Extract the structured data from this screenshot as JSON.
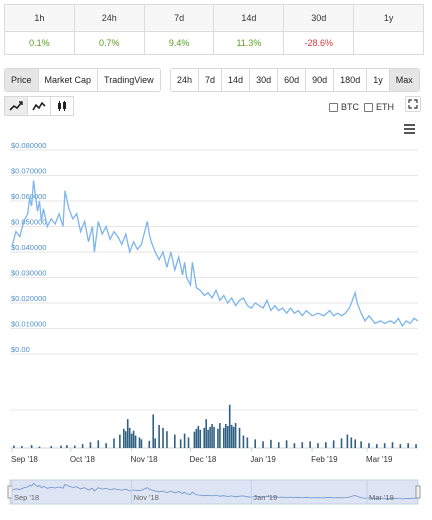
{
  "performance": {
    "headers": [
      "1h",
      "24h",
      "7d",
      "14d",
      "30d",
      "1y"
    ],
    "values": [
      "0.1%",
      "0.7%",
      "9.4%",
      "11.3%",
      "-28.6%",
      ""
    ],
    "signs": [
      "pos",
      "pos",
      "pos",
      "pos",
      "neg",
      ""
    ]
  },
  "chart_type_tabs": [
    {
      "label": "Price",
      "active": true
    },
    {
      "label": "Market Cap",
      "active": false
    },
    {
      "label": "TradingView",
      "active": false
    }
  ],
  "range_tabs": [
    {
      "label": "24h",
      "active": false
    },
    {
      "label": "7d",
      "active": false
    },
    {
      "label": "14d",
      "active": false
    },
    {
      "label": "30d",
      "active": false
    },
    {
      "label": "60d",
      "active": false
    },
    {
      "label": "90d",
      "active": false
    },
    {
      "label": "180d",
      "active": false
    },
    {
      "label": "1y",
      "active": false
    },
    {
      "label": "Max",
      "active": true
    }
  ],
  "toggles": {
    "btc": "BTC",
    "eth": "ETH"
  },
  "chart_data": {
    "type": "line",
    "series_color": "#7cb5ec",
    "volume_color": "#2f5f82",
    "y_ticks": [
      "$0.080000",
      "$0.070000",
      "$0.060000",
      "$0.050000",
      "$0.040000",
      "$0.030000",
      "$0.020000",
      "$0.010000",
      "$0.00"
    ],
    "ylim": [
      0,
      0.08
    ],
    "x_ticks": [
      {
        "label": "Sep '18",
        "day": 0
      },
      {
        "label": "Oct '18",
        "day": 30
      },
      {
        "label": "Nov '18",
        "day": 61
      },
      {
        "label": "Dec '18",
        "day": 91
      },
      {
        "label": "Jan '19",
        "day": 122
      },
      {
        "label": "Feb '19",
        "day": 153
      },
      {
        "label": "Mar '19",
        "day": 181
      }
    ],
    "price_points": [
      [
        0,
        0.042
      ],
      [
        2,
        0.048
      ],
      [
        4,
        0.046
      ],
      [
        6,
        0.052
      ],
      [
        8,
        0.055
      ],
      [
        9,
        0.061
      ],
      [
        10,
        0.058
      ],
      [
        11,
        0.068
      ],
      [
        12,
        0.062
      ],
      [
        13,
        0.056
      ],
      [
        14,
        0.06
      ],
      [
        15,
        0.052
      ],
      [
        16,
        0.057
      ],
      [
        18,
        0.05
      ],
      [
        20,
        0.053
      ],
      [
        22,
        0.051
      ],
      [
        24,
        0.055
      ],
      [
        26,
        0.05
      ],
      [
        27,
        0.064
      ],
      [
        29,
        0.057
      ],
      [
        31,
        0.053
      ],
      [
        33,
        0.055
      ],
      [
        35,
        0.048
      ],
      [
        37,
        0.052
      ],
      [
        39,
        0.044
      ],
      [
        41,
        0.05
      ],
      [
        42,
        0.04
      ],
      [
        44,
        0.052
      ],
      [
        46,
        0.047
      ],
      [
        48,
        0.05
      ],
      [
        50,
        0.045
      ],
      [
        52,
        0.048
      ],
      [
        54,
        0.046
      ],
      [
        56,
        0.043
      ],
      [
        58,
        0.047
      ],
      [
        60,
        0.04
      ],
      [
        62,
        0.044
      ],
      [
        64,
        0.041
      ],
      [
        66,
        0.043
      ],
      [
        69,
        0.052
      ],
      [
        70,
        0.047
      ],
      [
        71,
        0.044
      ],
      [
        73,
        0.04
      ],
      [
        75,
        0.037
      ],
      [
        77,
        0.04
      ],
      [
        79,
        0.034
      ],
      [
        81,
        0.04
      ],
      [
        83,
        0.033
      ],
      [
        85,
        0.038
      ],
      [
        87,
        0.031
      ],
      [
        88,
        0.036
      ],
      [
        89,
        0.03
      ],
      [
        91,
        0.027
      ],
      [
        92,
        0.036
      ],
      [
        94,
        0.026
      ],
      [
        96,
        0.025
      ],
      [
        98,
        0.023
      ],
      [
        100,
        0.024
      ],
      [
        102,
        0.022
      ],
      [
        104,
        0.025
      ],
      [
        106,
        0.021
      ],
      [
        108,
        0.023
      ],
      [
        110,
        0.02
      ],
      [
        112,
        0.022
      ],
      [
        114,
        0.019
      ],
      [
        116,
        0.021
      ],
      [
        118,
        0.022
      ],
      [
        120,
        0.019
      ],
      [
        122,
        0.018
      ],
      [
        124,
        0.02
      ],
      [
        126,
        0.019
      ],
      [
        128,
        0.018
      ],
      [
        130,
        0.021
      ],
      [
        132,
        0.017
      ],
      [
        134,
        0.019
      ],
      [
        136,
        0.017
      ],
      [
        138,
        0.018
      ],
      [
        140,
        0.016
      ],
      [
        142,
        0.018
      ],
      [
        144,
        0.016
      ],
      [
        146,
        0.017
      ],
      [
        148,
        0.015
      ],
      [
        150,
        0.017
      ],
      [
        153,
        0.015
      ],
      [
        156,
        0.016
      ],
      [
        159,
        0.015
      ],
      [
        162,
        0.017
      ],
      [
        164,
        0.015
      ],
      [
        166,
        0.016
      ],
      [
        168,
        0.015
      ],
      [
        170,
        0.016
      ],
      [
        172,
        0.018
      ],
      [
        174,
        0.022
      ],
      [
        175,
        0.024
      ],
      [
        176,
        0.02
      ],
      [
        178,
        0.016
      ],
      [
        180,
        0.013
      ],
      [
        182,
        0.015
      ],
      [
        185,
        0.012
      ],
      [
        188,
        0.013
      ],
      [
        190,
        0.012
      ],
      [
        193,
        0.013
      ],
      [
        195,
        0.012
      ],
      [
        197,
        0.014
      ],
      [
        199,
        0.011
      ],
      [
        201,
        0.013
      ],
      [
        203,
        0.012
      ],
      [
        205,
        0.014
      ],
      [
        207,
        0.013
      ]
    ],
    "volume_points": [
      [
        1,
        0.05
      ],
      [
        5,
        0.04
      ],
      [
        10,
        0.06
      ],
      [
        14,
        0.03
      ],
      [
        20,
        0.04
      ],
      [
        25,
        0.05
      ],
      [
        28,
        0.06
      ],
      [
        32,
        0.05
      ],
      [
        36,
        0.08
      ],
      [
        40,
        0.12
      ],
      [
        44,
        0.16
      ],
      [
        48,
        0.1
      ],
      [
        52,
        0.2
      ],
      [
        55,
        0.28
      ],
      [
        57,
        0.4
      ],
      [
        58,
        0.35
      ],
      [
        59,
        0.6
      ],
      [
        60,
        0.42
      ],
      [
        61,
        0.3
      ],
      [
        62,
        0.36
      ],
      [
        63,
        0.26
      ],
      [
        65,
        0.22
      ],
      [
        66,
        0.18
      ],
      [
        70,
        0.15
      ],
      [
        72,
        0.7
      ],
      [
        73,
        0.2
      ],
      [
        75,
        0.48
      ],
      [
        77,
        0.42
      ],
      [
        79,
        0.35
      ],
      [
        83,
        0.28
      ],
      [
        86,
        0.18
      ],
      [
        88,
        0.3
      ],
      [
        90,
        0.22
      ],
      [
        93,
        0.34
      ],
      [
        94,
        0.4
      ],
      [
        95,
        0.46
      ],
      [
        96,
        0.38
      ],
      [
        98,
        0.42
      ],
      [
        99,
        0.6
      ],
      [
        100,
        0.38
      ],
      [
        101,
        0.44
      ],
      [
        102,
        0.5
      ],
      [
        103,
        0.44
      ],
      [
        105,
        0.4
      ],
      [
        106,
        0.52
      ],
      [
        108,
        0.42
      ],
      [
        109,
        0.5
      ],
      [
        110,
        0.46
      ],
      [
        111,
        0.9
      ],
      [
        112,
        0.48
      ],
      [
        113,
        0.44
      ],
      [
        114,
        0.52
      ],
      [
        116,
        0.42
      ],
      [
        118,
        0.26
      ],
      [
        120,
        0.22
      ],
      [
        124,
        0.18
      ],
      [
        128,
        0.14
      ],
      [
        132,
        0.17
      ],
      [
        136,
        0.12
      ],
      [
        140,
        0.16
      ],
      [
        144,
        0.1
      ],
      [
        148,
        0.12
      ],
      [
        152,
        0.14
      ],
      [
        156,
        0.1
      ],
      [
        160,
        0.12
      ],
      [
        164,
        0.16
      ],
      [
        168,
        0.2
      ],
      [
        171,
        0.28
      ],
      [
        173,
        0.22
      ],
      [
        175,
        0.18
      ],
      [
        178,
        0.14
      ],
      [
        182,
        0.1
      ],
      [
        186,
        0.08
      ],
      [
        190,
        0.1
      ],
      [
        194,
        0.12
      ],
      [
        198,
        0.08
      ],
      [
        202,
        0.1
      ],
      [
        206,
        0.08
      ]
    ],
    "navigator_ticks": [
      {
        "label": "Sep '18",
        "day": 0
      },
      {
        "label": "Nov '18",
        "day": 61
      },
      {
        "label": "Jan '19",
        "day": 122
      },
      {
        "label": "Mar '19",
        "day": 181
      }
    ]
  }
}
